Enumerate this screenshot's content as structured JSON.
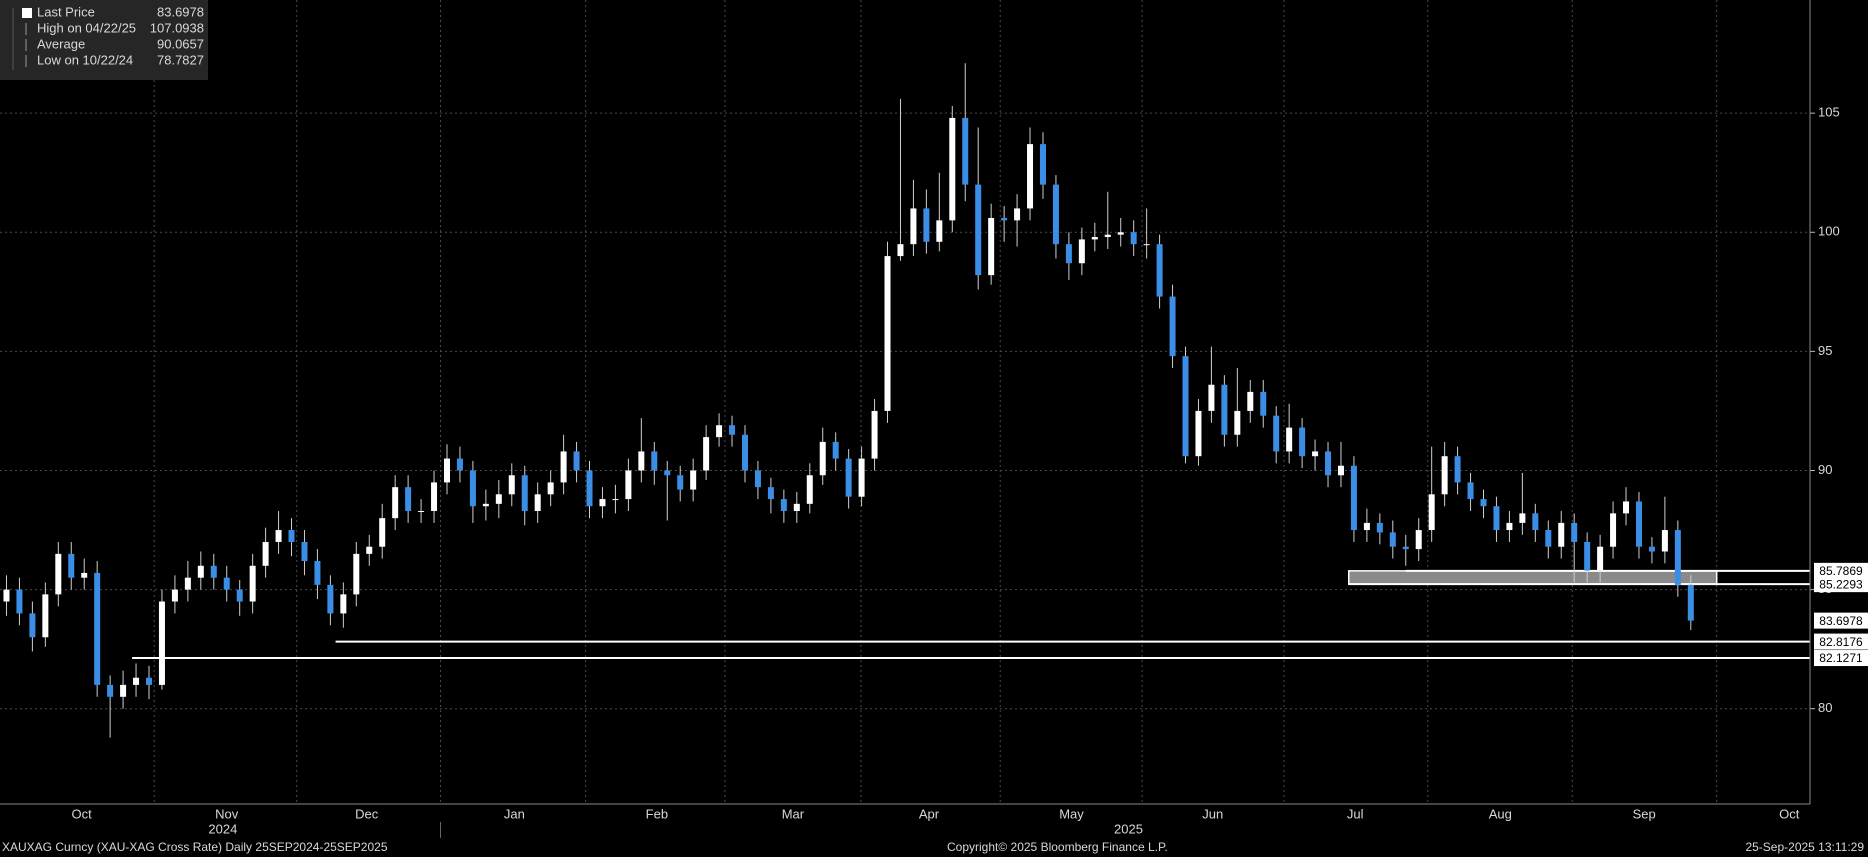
{
  "chart_data": {
    "type": "candlestick",
    "up_color": "#ffffff",
    "down_color": "#3a8ee6",
    "xlim": [
      -0.5,
      139.2
    ],
    "ylim": [
      76,
      109.75
    ],
    "yticks": [
      80,
      85,
      90,
      95,
      100,
      105
    ],
    "grid": true,
    "month_labels": [
      {
        "value": 5.8,
        "label": "Oct"
      },
      {
        "value": 17.0,
        "label": "Nov"
      },
      {
        "value": 27.8,
        "label": "Dec"
      },
      {
        "value": 39.2,
        "label": "Jan"
      },
      {
        "value": 50.2,
        "label": "Feb"
      },
      {
        "value": 60.7,
        "label": "Mar"
      },
      {
        "value": 71.2,
        "label": "Apr"
      },
      {
        "value": 82.2,
        "label": "May"
      },
      {
        "value": 93.1,
        "label": "Jun"
      },
      {
        "value": 104.1,
        "label": "Jul"
      },
      {
        "value": 115.3,
        "label": "Aug"
      },
      {
        "value": 126.4,
        "label": "Sep"
      },
      {
        "value": 137.6,
        "label": "Oct"
      }
    ],
    "year_labels": [
      {
        "value": 16.7,
        "label": "2024"
      },
      {
        "value": 86.6,
        "label": "2025"
      }
    ],
    "legend": [
      {
        "label": "Last Price",
        "value": 83.6978
      },
      {
        "label": "High on 04/22/25",
        "value": 107.0938
      },
      {
        "label": "Average",
        "value": 90.0657
      },
      {
        "label": "Low on 10/22/24",
        "value": 78.7827
      }
    ],
    "levels": [
      {
        "value": 85.7869,
        "from": 108
      },
      {
        "value": 85.2293,
        "from": 103.6
      },
      {
        "value": 82.8176,
        "from": 25.4
      },
      {
        "value": 82.1271,
        "from": 9.7
      }
    ],
    "zone": {
      "from": 103.6,
      "to": 132
    },
    "footer_left": "XAUXAG Curncy (XAU-XAG Cross Rate)  Daily 25SEP2024-25SEP2025",
    "footer_center": "Copyright© 2025 Bloomberg Finance L.P.",
    "footer_right": "25-Sep-2025 13:11:29",
    "open": [
      84.5,
      85,
      84,
      83,
      84.8,
      86.5,
      85.5,
      85.7,
      81,
      80.5,
      81,
      81.3,
      81,
      84.5,
      85,
      85.5,
      86,
      85.5,
      85,
      84.5,
      86,
      87,
      87.5,
      87,
      86.2,
      85.2,
      84,
      84.8,
      86.5,
      86.8,
      88,
      89.3,
      88.3,
      88.3,
      89.5,
      90.5,
      90,
      88.5,
      88.6,
      89,
      89.8,
      88.3,
      89,
      89.5,
      90.8,
      90,
      88.5,
      88.8,
      88.8,
      90,
      90.8,
      90,
      89.8,
      89.2,
      90,
      91.4,
      91.9,
      91.5,
      90,
      89.3,
      88.8,
      88.3,
      88.6,
      89.8,
      91.2,
      90.5,
      88.9,
      90.5,
      92.5,
      99,
      99.5,
      101,
      99.6,
      100.5,
      104.8,
      102,
      98.2,
      100.6,
      100.5,
      101,
      103.7,
      102,
      99.5,
      98.7,
      99.7,
      99.8,
      99.9,
      100,
      99.5,
      99.5,
      97.3,
      94.8,
      90.6,
      92.5,
      93.6,
      91.5,
      92.5,
      93.3,
      92.3,
      90.8,
      91.8,
      90.6,
      90.8,
      89.8,
      90.2,
      87.5,
      87.8,
      87.4,
      86.8,
      86.7,
      87.5,
      89,
      90.6,
      89.5,
      88.8,
      88.5,
      87.5,
      87.8,
      88.2,
      87.5,
      86.8,
      87.8,
      87,
      85.8,
      86.8,
      88.2,
      88.7,
      86.8,
      86.6,
      87.5,
      85.2
    ],
    "high": [
      85.6,
      85.5,
      84.5,
      85.3,
      87,
      87,
      86.3,
      86.2,
      81.4,
      81.6,
      81.9,
      81.8,
      85,
      85.6,
      86.2,
      86.6,
      86.5,
      86,
      85.4,
      86.5,
      87.6,
      88.3,
      88,
      87.5,
      86.7,
      85.6,
      85.3,
      87,
      87.3,
      88.6,
      89.8,
      89.8,
      88.8,
      90,
      91.1,
      91,
      90.4,
      89.2,
      89.6,
      90.3,
      90.2,
      89.5,
      90,
      91.5,
      91.2,
      90.4,
      89.3,
      89.4,
      90.5,
      92.2,
      91.2,
      90.4,
      90.2,
      90.5,
      91.9,
      92.4,
      92.3,
      91.9,
      90.4,
      89.7,
      89.2,
      89.1,
      90.3,
      91.8,
      91.6,
      90.9,
      91,
      93,
      99.6,
      105.6,
      102.2,
      101.8,
      102.5,
      105.3,
      107.0938,
      104.4,
      101.2,
      101.1,
      101.6,
      104.4,
      104.2,
      102.4,
      100,
      100.2,
      100.4,
      101.7,
      100.6,
      100.5,
      101,
      99.9,
      97.8,
      95.2,
      93,
      95.2,
      94,
      94.3,
      93.8,
      93.8,
      92.7,
      92.8,
      92.2,
      91.3,
      91.2,
      91.2,
      90.6,
      88.4,
      88.2,
      87.9,
      87.3,
      88,
      91,
      91.2,
      91,
      89.9,
      89.2,
      88.9,
      88.3,
      89.9,
      88.6,
      87.9,
      88.3,
      88.2,
      87.4,
      87.3,
      88.7,
      89.3,
      89.1,
      87.2,
      88.9,
      87.9,
      85.6
    ],
    "low": [
      83.9,
      83.5,
      82.4,
      82.6,
      84.3,
      85,
      85,
      80.5,
      78.7827,
      80,
      80.5,
      80.4,
      80.8,
      84,
      84.5,
      85,
      85,
      84.5,
      83.9,
      84,
      85.5,
      86.5,
      86.4,
      85.6,
      84.6,
      83.5,
      83.4,
      84.3,
      86,
      86.3,
      87.5,
      87.8,
      87.8,
      87.8,
      89,
      89.5,
      87.8,
      87.9,
      88,
      88.5,
      87.7,
      87.8,
      88.5,
      89,
      89.5,
      88,
      88,
      88.2,
      88.3,
      89.5,
      89.4,
      87.9,
      88.7,
      88.7,
      89.6,
      91,
      91,
      89.5,
      88.8,
      88.2,
      87.8,
      87.8,
      88.2,
      89.4,
      90,
      88.4,
      88.5,
      90,
      92,
      98.8,
      99,
      99.1,
      99.2,
      100,
      101.3,
      97.6,
      97.8,
      99.6,
      99.4,
      100.5,
      101.4,
      98.9,
      98,
      98.2,
      99.2,
      99.3,
      99.4,
      99,
      98.9,
      96.8,
      94.3,
      90.3,
      90.2,
      92,
      91,
      91,
      92,
      91.8,
      90.3,
      90.3,
      90.1,
      90,
      89.3,
      89.3,
      87,
      87,
      86.9,
      86.3,
      86,
      86.2,
      87,
      88.5,
      89,
      88.3,
      88,
      87,
      87,
      87.3,
      87,
      86.3,
      86.3,
      85.3,
      85.3,
      85.3,
      86.3,
      87.7,
      86.3,
      86.1,
      86.1,
      84.7,
      83.3
    ],
    "close": [
      85,
      84,
      83,
      84.8,
      86.5,
      85.5,
      85.7,
      81,
      80.5,
      81,
      81.3,
      81,
      84.5,
      85,
      85.5,
      86,
      85.5,
      85,
      84.5,
      86,
      87,
      87.5,
      87,
      86.2,
      85.2,
      84,
      84.8,
      86.5,
      86.8,
      88,
      89.3,
      88.3,
      88.3,
      89.5,
      90.5,
      90,
      88.5,
      88.6,
      89,
      89.8,
      88.3,
      89,
      89.5,
      90.8,
      90,
      88.5,
      88.8,
      88.8,
      90,
      90.8,
      90,
      89.8,
      89.2,
      90,
      91.4,
      91.9,
      91.5,
      90,
      89.3,
      88.8,
      88.3,
      88.6,
      89.8,
      91.2,
      90.5,
      88.9,
      90.5,
      92.5,
      99,
      99.5,
      101,
      99.6,
      100.5,
      104.8,
      102,
      98.2,
      100.6,
      100.5,
      101,
      103.7,
      102,
      99.5,
      98.7,
      99.7,
      99.8,
      99.9,
      100,
      99.5,
      99.5,
      97.3,
      94.8,
      90.6,
      92.5,
      93.6,
      91.5,
      92.5,
      93.3,
      92.3,
      90.8,
      91.8,
      90.6,
      90.8,
      89.8,
      90.2,
      87.5,
      87.8,
      87.4,
      86.8,
      86.7,
      87.5,
      89,
      90.6,
      89.5,
      88.8,
      88.5,
      87.5,
      87.8,
      88.2,
      87.5,
      86.8,
      87.8,
      87,
      85.8,
      86.8,
      88.2,
      88.7,
      86.8,
      86.6,
      87.5,
      85.2,
      83.6978
    ]
  }
}
